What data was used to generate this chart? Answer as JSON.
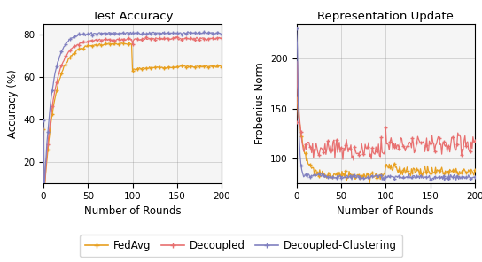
{
  "title_left": "Test Accuracy",
  "title_right": "Representation Update",
  "xlabel": "Number of Rounds",
  "ylabel_left": "Accuracy (%)",
  "ylabel_right": "Frobenius Norm",
  "colors": {
    "fedavg": "#E8A020",
    "decoupled": "#E87070",
    "decoupled_clustering": "#8080C0"
  },
  "legend_labels": [
    "FedAvg",
    "Decoupled",
    "Decoupled-Clustering"
  ],
  "rounds": 200,
  "acc_ylim": [
    10,
    85
  ],
  "acc_yticks": [
    20,
    40,
    60,
    80
  ],
  "frob_ylim": [
    75,
    235
  ],
  "frob_yticks": [
    100,
    150,
    200
  ],
  "xticks": [
    0,
    50,
    100,
    150,
    200
  ],
  "figsize": [
    5.44,
    2.96
  ],
  "dpi": 100
}
